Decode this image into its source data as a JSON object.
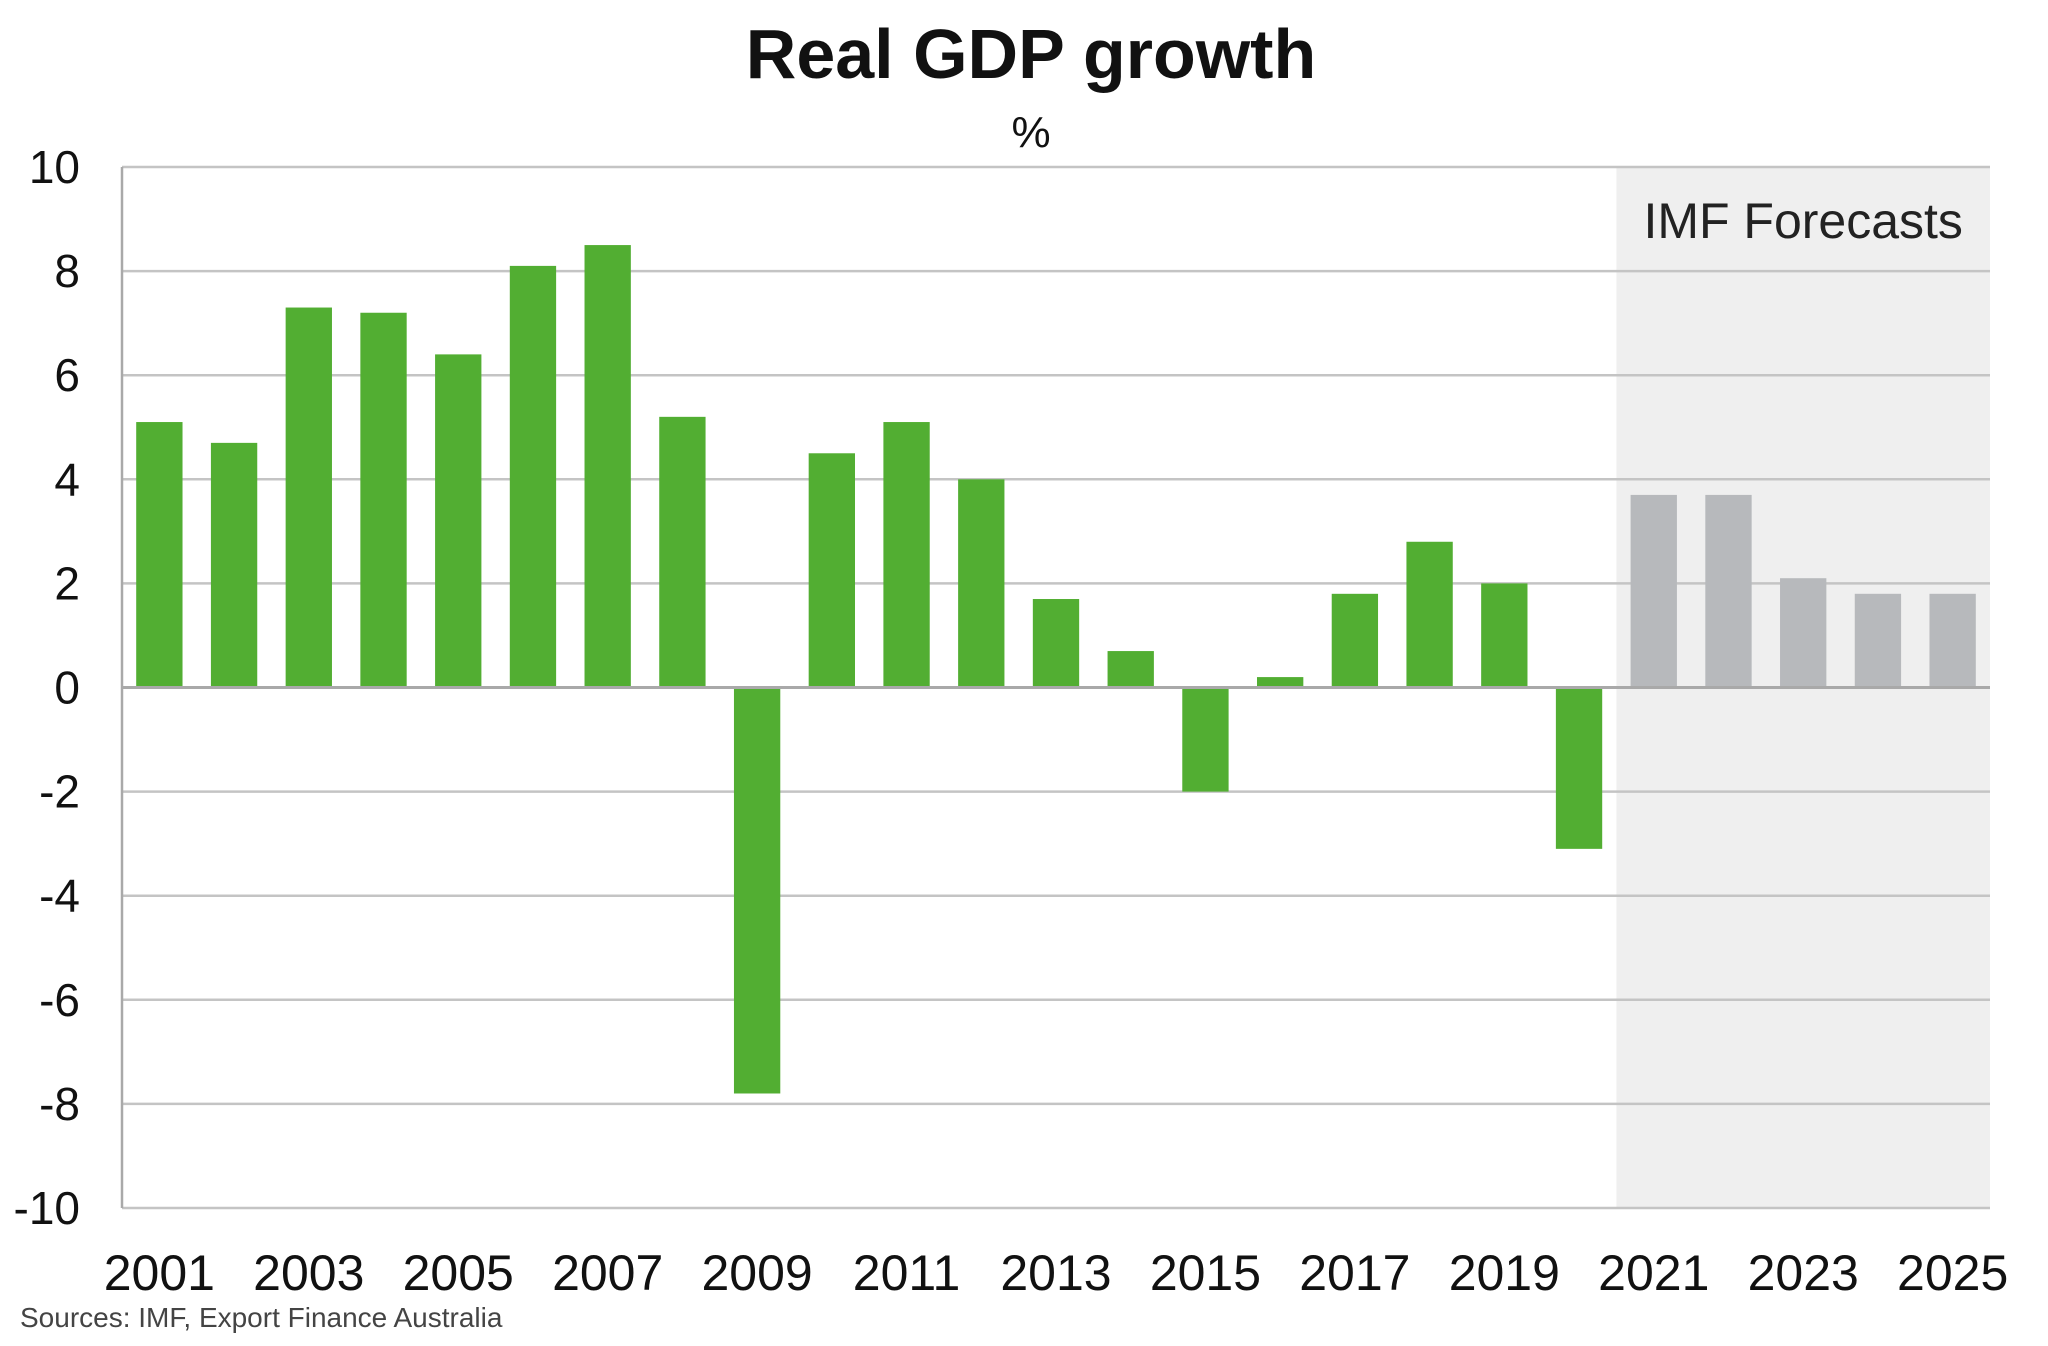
{
  "chart_data": {
    "type": "bar",
    "title": "Real GDP growth",
    "subtitle": "%",
    "xlabel": "",
    "ylabel": "",
    "ylim": [
      -10,
      10
    ],
    "yticks": [
      "10",
      "8",
      "6",
      "4",
      "2",
      "0",
      "-2",
      "-4",
      "-6",
      "-8",
      "-10"
    ],
    "xtick_labels": [
      "2001",
      "2003",
      "2005",
      "2007",
      "2009",
      "2011",
      "2013",
      "2015",
      "2017",
      "2019",
      "2021",
      "2023",
      "2025"
    ],
    "grid": true,
    "categories": [
      "2001",
      "2002",
      "2003",
      "2004",
      "2005",
      "2006",
      "2007",
      "2008",
      "2009",
      "2010",
      "2011",
      "2012",
      "2013",
      "2014",
      "2015",
      "2016",
      "2017",
      "2018",
      "2019",
      "2020",
      "2021",
      "2022",
      "2023",
      "2024",
      "2025"
    ],
    "series": [
      {
        "values": [
          5.1,
          4.7,
          7.3,
          7.2,
          6.4,
          8.1,
          8.5,
          5.2,
          -7.8,
          4.5,
          5.1,
          4.0,
          1.7,
          0.7,
          -2.0,
          0.2,
          1.8,
          2.8,
          2.0,
          -3.1,
          3.7,
          3.7,
          2.1,
          1.8,
          1.8
        ]
      }
    ],
    "forecast_start": "2021",
    "annotation": "IMF Forecasts",
    "colors": {
      "actual": "#52ae32",
      "forecast": "#b7b9bc",
      "forecast_band": "#efefef",
      "grid": "#c4c4c4",
      "axis": "#a9a9a9"
    }
  },
  "footer": {
    "source": "Sources: IMF, Export Finance Australia"
  }
}
